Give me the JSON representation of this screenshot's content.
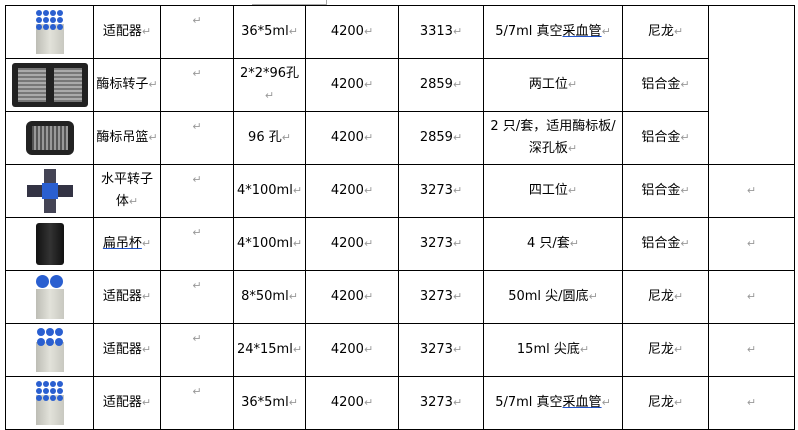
{
  "paragraph_mark": "↵",
  "rows": [
    {
      "image": "adapter-36x5ml-image",
      "name": "适配器",
      "blank": "",
      "capacity": "36*5ml",
      "speed": "4200",
      "rcf": "3313",
      "desc": "5/7ml 真空",
      "desc_ul": "采血管",
      "material": "尼龙"
    },
    {
      "image": "microplate-rotor-image",
      "name": "酶标转子",
      "blank": "",
      "capacity": "2*2*96孔",
      "speed": "4200",
      "rcf": "2859",
      "desc": "两工位",
      "desc_ul": "",
      "material": "铝合金"
    },
    {
      "image": "microplate-basket-image",
      "name": "酶标吊篮",
      "blank": "",
      "capacity": "96 孔",
      "speed": "4200",
      "rcf": "2859",
      "desc": "2 只/套，适用酶标板/深孔板",
      "desc_ul": "",
      "material": "铝合金"
    },
    {
      "image": "horizontal-rotor-image",
      "name": "水平转子体",
      "blank": "",
      "capacity": "4*100ml",
      "speed": "4200",
      "rcf": "3273",
      "desc": "四工位",
      "desc_ul": "",
      "material": "铝合金"
    },
    {
      "image": "flat-bucket-image",
      "name": "扁吊杯",
      "name_underlined": true,
      "blank": "",
      "capacity": "4*100ml",
      "speed": "4200",
      "rcf": "3273",
      "desc": "4 只/套",
      "desc_ul": "",
      "material": "铝合金"
    },
    {
      "image": "adapter-8x50ml-image",
      "name": "适配器",
      "blank": "",
      "capacity": "8*50ml",
      "speed": "4200",
      "rcf": "3273",
      "desc": "50ml 尖/圆底",
      "desc_ul": "",
      "material": "尼龙"
    },
    {
      "image": "adapter-24x15ml-image",
      "name": "适配器",
      "blank": "",
      "capacity": "24*15ml",
      "speed": "4200",
      "rcf": "3273",
      "desc": "15ml 尖底",
      "desc_ul": "",
      "material": "尼龙"
    },
    {
      "image": "adapter-36x5ml-image",
      "name": "适配器",
      "blank": "",
      "capacity": "36*5ml",
      "speed": "4200",
      "rcf": "3273",
      "desc": "5/7ml 真空",
      "desc_ul": "采血管",
      "material": "尼龙"
    }
  ],
  "colors": {
    "cap_blue": "#2a5fd0",
    "underline": "#2255cc",
    "border": "#000000"
  }
}
